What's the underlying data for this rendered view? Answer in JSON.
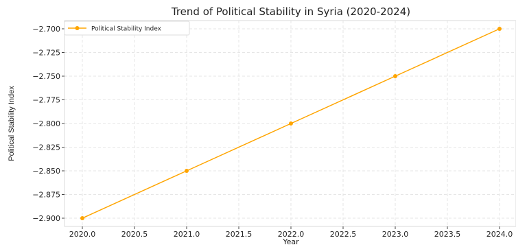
{
  "chart_data": {
    "type": "line",
    "title": "Trend of Political Stability in Syria (2020-2024)",
    "xlabel": "Year",
    "ylabel": "Political Stability Index",
    "x": [
      2020,
      2021,
      2022,
      2023,
      2024
    ],
    "series": [
      {
        "name": "Political Stability Index",
        "values": [
          -2.9,
          -2.85,
          -2.8,
          -2.75,
          -2.7
        ],
        "color": "#FFA500",
        "marker": "circle"
      }
    ],
    "xlim": [
      2020,
      2024
    ],
    "ylim": [
      -2.9,
      -2.7
    ],
    "x_ticks": [
      2020,
      2020.5,
      2021,
      2021.5,
      2022,
      2022.5,
      2023,
      2023.5,
      2024
    ],
    "x_tick_labels": [
      "2020.0",
      "2020.5",
      "2021.0",
      "2021.5",
      "2022.0",
      "2022.5",
      "2023.0",
      "2023.5",
      "2024.0"
    ],
    "y_ticks": [
      -2.9,
      -2.875,
      -2.85,
      -2.825,
      -2.8,
      -2.775,
      -2.75,
      -2.725,
      -2.7
    ],
    "y_tick_labels": [
      "−2.900",
      "−2.875",
      "−2.850",
      "−2.825",
      "−2.800",
      "−2.775",
      "−2.750",
      "−2.725",
      "−2.700"
    ],
    "grid": true,
    "legend": "top-left"
  }
}
